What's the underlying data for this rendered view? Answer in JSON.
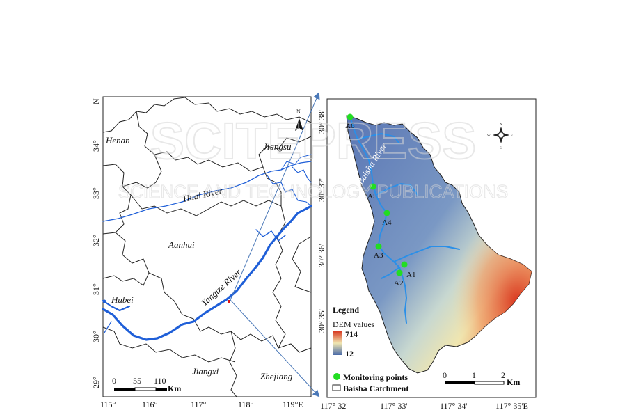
{
  "watermark": {
    "main": "SCITEPRESS",
    "sub": "SCIENCE AND TECHNOLOGY PUBLICATIONS"
  },
  "left_map": {
    "north_label": "N",
    "provinces": [
      "Henan",
      "Jiangsu",
      "Aanhui",
      "Hubei",
      "Jiangxi",
      "Zhejiang"
    ],
    "rivers": [
      "Huai River",
      "Yangtze River"
    ],
    "x_ticks": [
      "115°",
      "116°",
      "117°",
      "118°",
      "119°E"
    ],
    "y_ticks": [
      "34°",
      "33°",
      "32°",
      "31°",
      "30°",
      "29°"
    ],
    "scale": {
      "values": [
        "0",
        "55",
        "110"
      ],
      "unit": "Km"
    }
  },
  "right_map": {
    "river_label": "Baisha River",
    "monitoring_points": [
      "A1",
      "A2",
      "A3",
      "A4",
      "A5",
      "A6"
    ],
    "x_ticks": [
      "117° 32'",
      "117° 33'",
      "117° 34'",
      "117° 35'E"
    ],
    "y_ticks": [
      "30° 38'",
      "30° 37'",
      "30° 36'",
      "30° 35'"
    ],
    "legend": {
      "title": "Legend",
      "dem_label": "DEM values",
      "dem_max": "714",
      "dem_min": "12",
      "points_label": "Monitoring points",
      "catchment_label": "Baisha Catchment"
    },
    "scale": {
      "values": [
        "0",
        "1",
        "2"
      ],
      "unit": "Km"
    },
    "compass_letters": [
      "N",
      "E",
      "S",
      "W"
    ]
  },
  "colors": {
    "river": "#1f5fd8",
    "point": "#22dd22",
    "dem_high": "#e04020",
    "dem_mid": "#e8e0b0",
    "dem_low": "#4a6aa8",
    "connector": "#4a78b8"
  }
}
